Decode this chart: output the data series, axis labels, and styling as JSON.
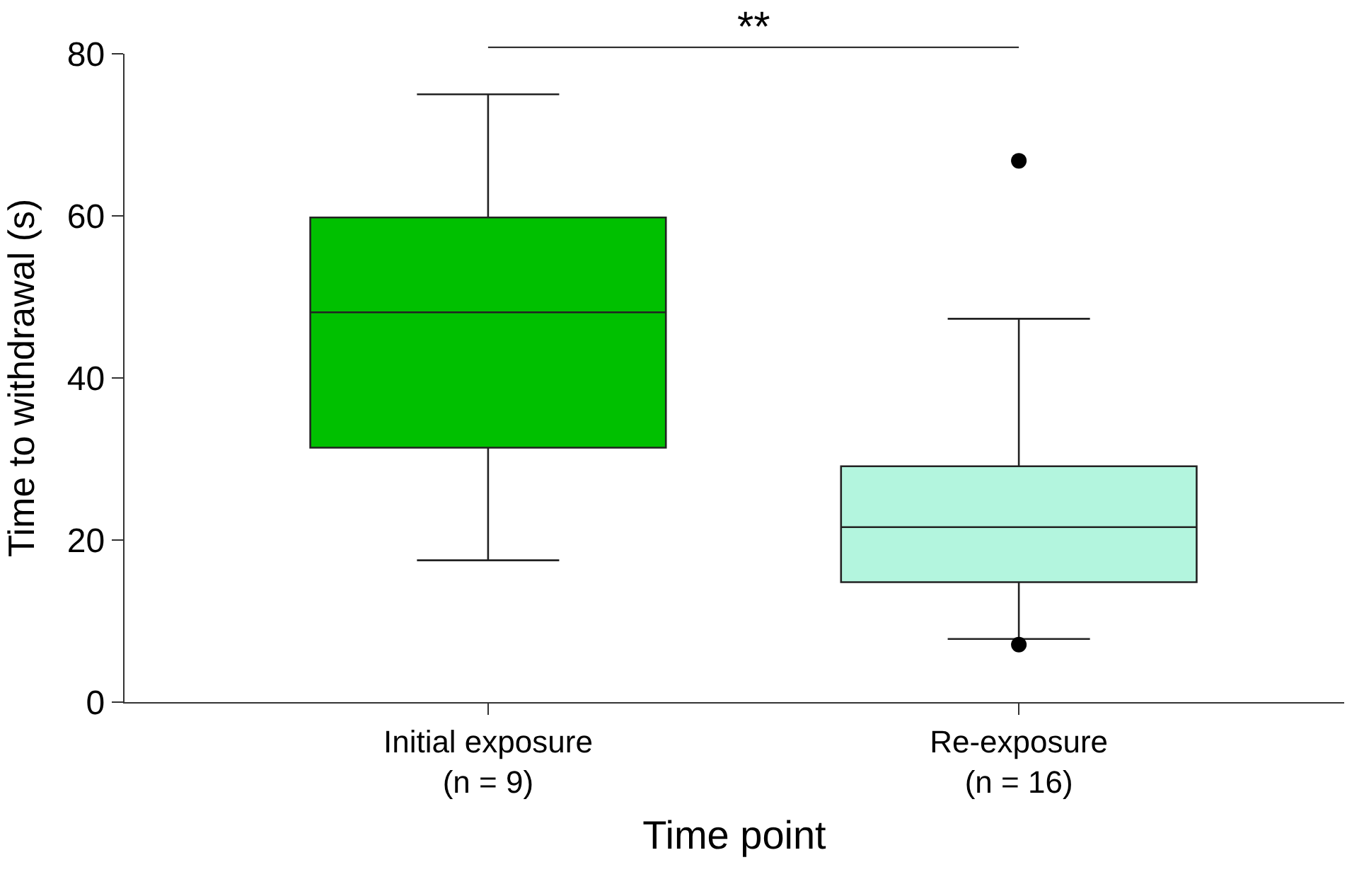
{
  "chart_data": {
    "type": "box",
    "xlabel": "Time point",
    "ylabel": "Time to withdrawal (s)",
    "categories": [
      "Initial exposure\n(n = 9)",
      "Re-exposure\n(n = 16)"
    ],
    "colors": [
      "#00c000",
      "#b3f5de"
    ],
    "boxes": [
      {
        "low": 17.5,
        "q1": 31.4,
        "median": 48.1,
        "q3": 59.8,
        "high": 75
      },
      {
        "low": 7.8,
        "q1": 14.8,
        "median": 21.6,
        "q3": 29.1,
        "high": 47.3,
        "outliers": [
          66.8,
          7.1
        ]
      }
    ],
    "ylim": [
      0,
      80
    ],
    "yticks": [
      0,
      20,
      40,
      60,
      80
    ],
    "annotations": [
      "**"
    ]
  }
}
